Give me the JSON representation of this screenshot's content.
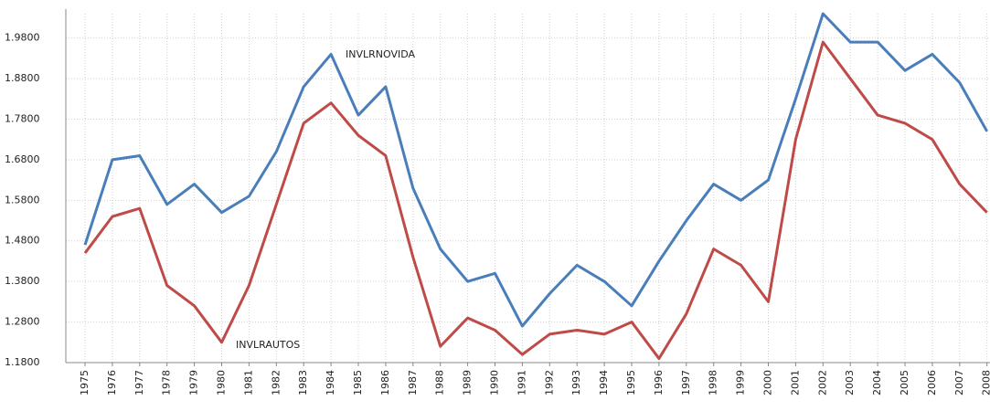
{
  "chart_data": {
    "type": "line",
    "categories": [
      "1975",
      "1976",
      "1977",
      "1978",
      "1979",
      "1980",
      "1981",
      "1982",
      "1983",
      "1984",
      "1985",
      "1986",
      "1987",
      "1988",
      "1989",
      "1990",
      "1991",
      "1992",
      "1993",
      "1994",
      "1995",
      "1996",
      "1997",
      "1998",
      "1999",
      "2000",
      "2001",
      "2002",
      "2003",
      "2004",
      "2005",
      "2006",
      "2007",
      "2008"
    ],
    "series": [
      {
        "name": "INVLRNOVIDA",
        "color": "#4a7ebb",
        "values": [
          1.47,
          1.68,
          1.69,
          1.57,
          1.62,
          1.55,
          1.59,
          1.7,
          1.86,
          1.94,
          1.79,
          1.86,
          1.61,
          1.46,
          1.38,
          1.4,
          1.27,
          1.35,
          1.42,
          1.38,
          1.32,
          1.43,
          1.53,
          1.62,
          1.58,
          1.63,
          1.83,
          2.04,
          1.97,
          1.97,
          1.9,
          1.94,
          1.87,
          1.75
        ]
      },
      {
        "name": "INVLRAUTOS",
        "color": "#be4b48",
        "values": [
          1.45,
          1.54,
          1.56,
          1.37,
          1.32,
          1.23,
          1.37,
          1.57,
          1.77,
          1.82,
          1.74,
          1.69,
          1.44,
          1.22,
          1.29,
          1.26,
          1.2,
          1.25,
          1.26,
          1.25,
          1.28,
          1.19,
          1.3,
          1.46,
          1.42,
          1.33,
          1.73,
          1.97,
          1.88,
          1.79,
          1.77,
          1.73,
          1.62,
          1.55
        ]
      }
    ],
    "ylim": [
      1.18,
      2.04
    ],
    "yticks": [
      {
        "value": 1.18,
        "label": "1.1800"
      },
      {
        "value": 1.28,
        "label": "1.2800"
      },
      {
        "value": 1.38,
        "label": "1.3800"
      },
      {
        "value": 1.48,
        "label": "1.4800"
      },
      {
        "value": 1.58,
        "label": "1.5800"
      },
      {
        "value": 1.68,
        "label": "1.6800"
      },
      {
        "value": 1.78,
        "label": "1.7800"
      },
      {
        "value": 1.88,
        "label": "1.8800"
      },
      {
        "value": 1.98,
        "label": "1.9800"
      }
    ],
    "grid": true
  }
}
